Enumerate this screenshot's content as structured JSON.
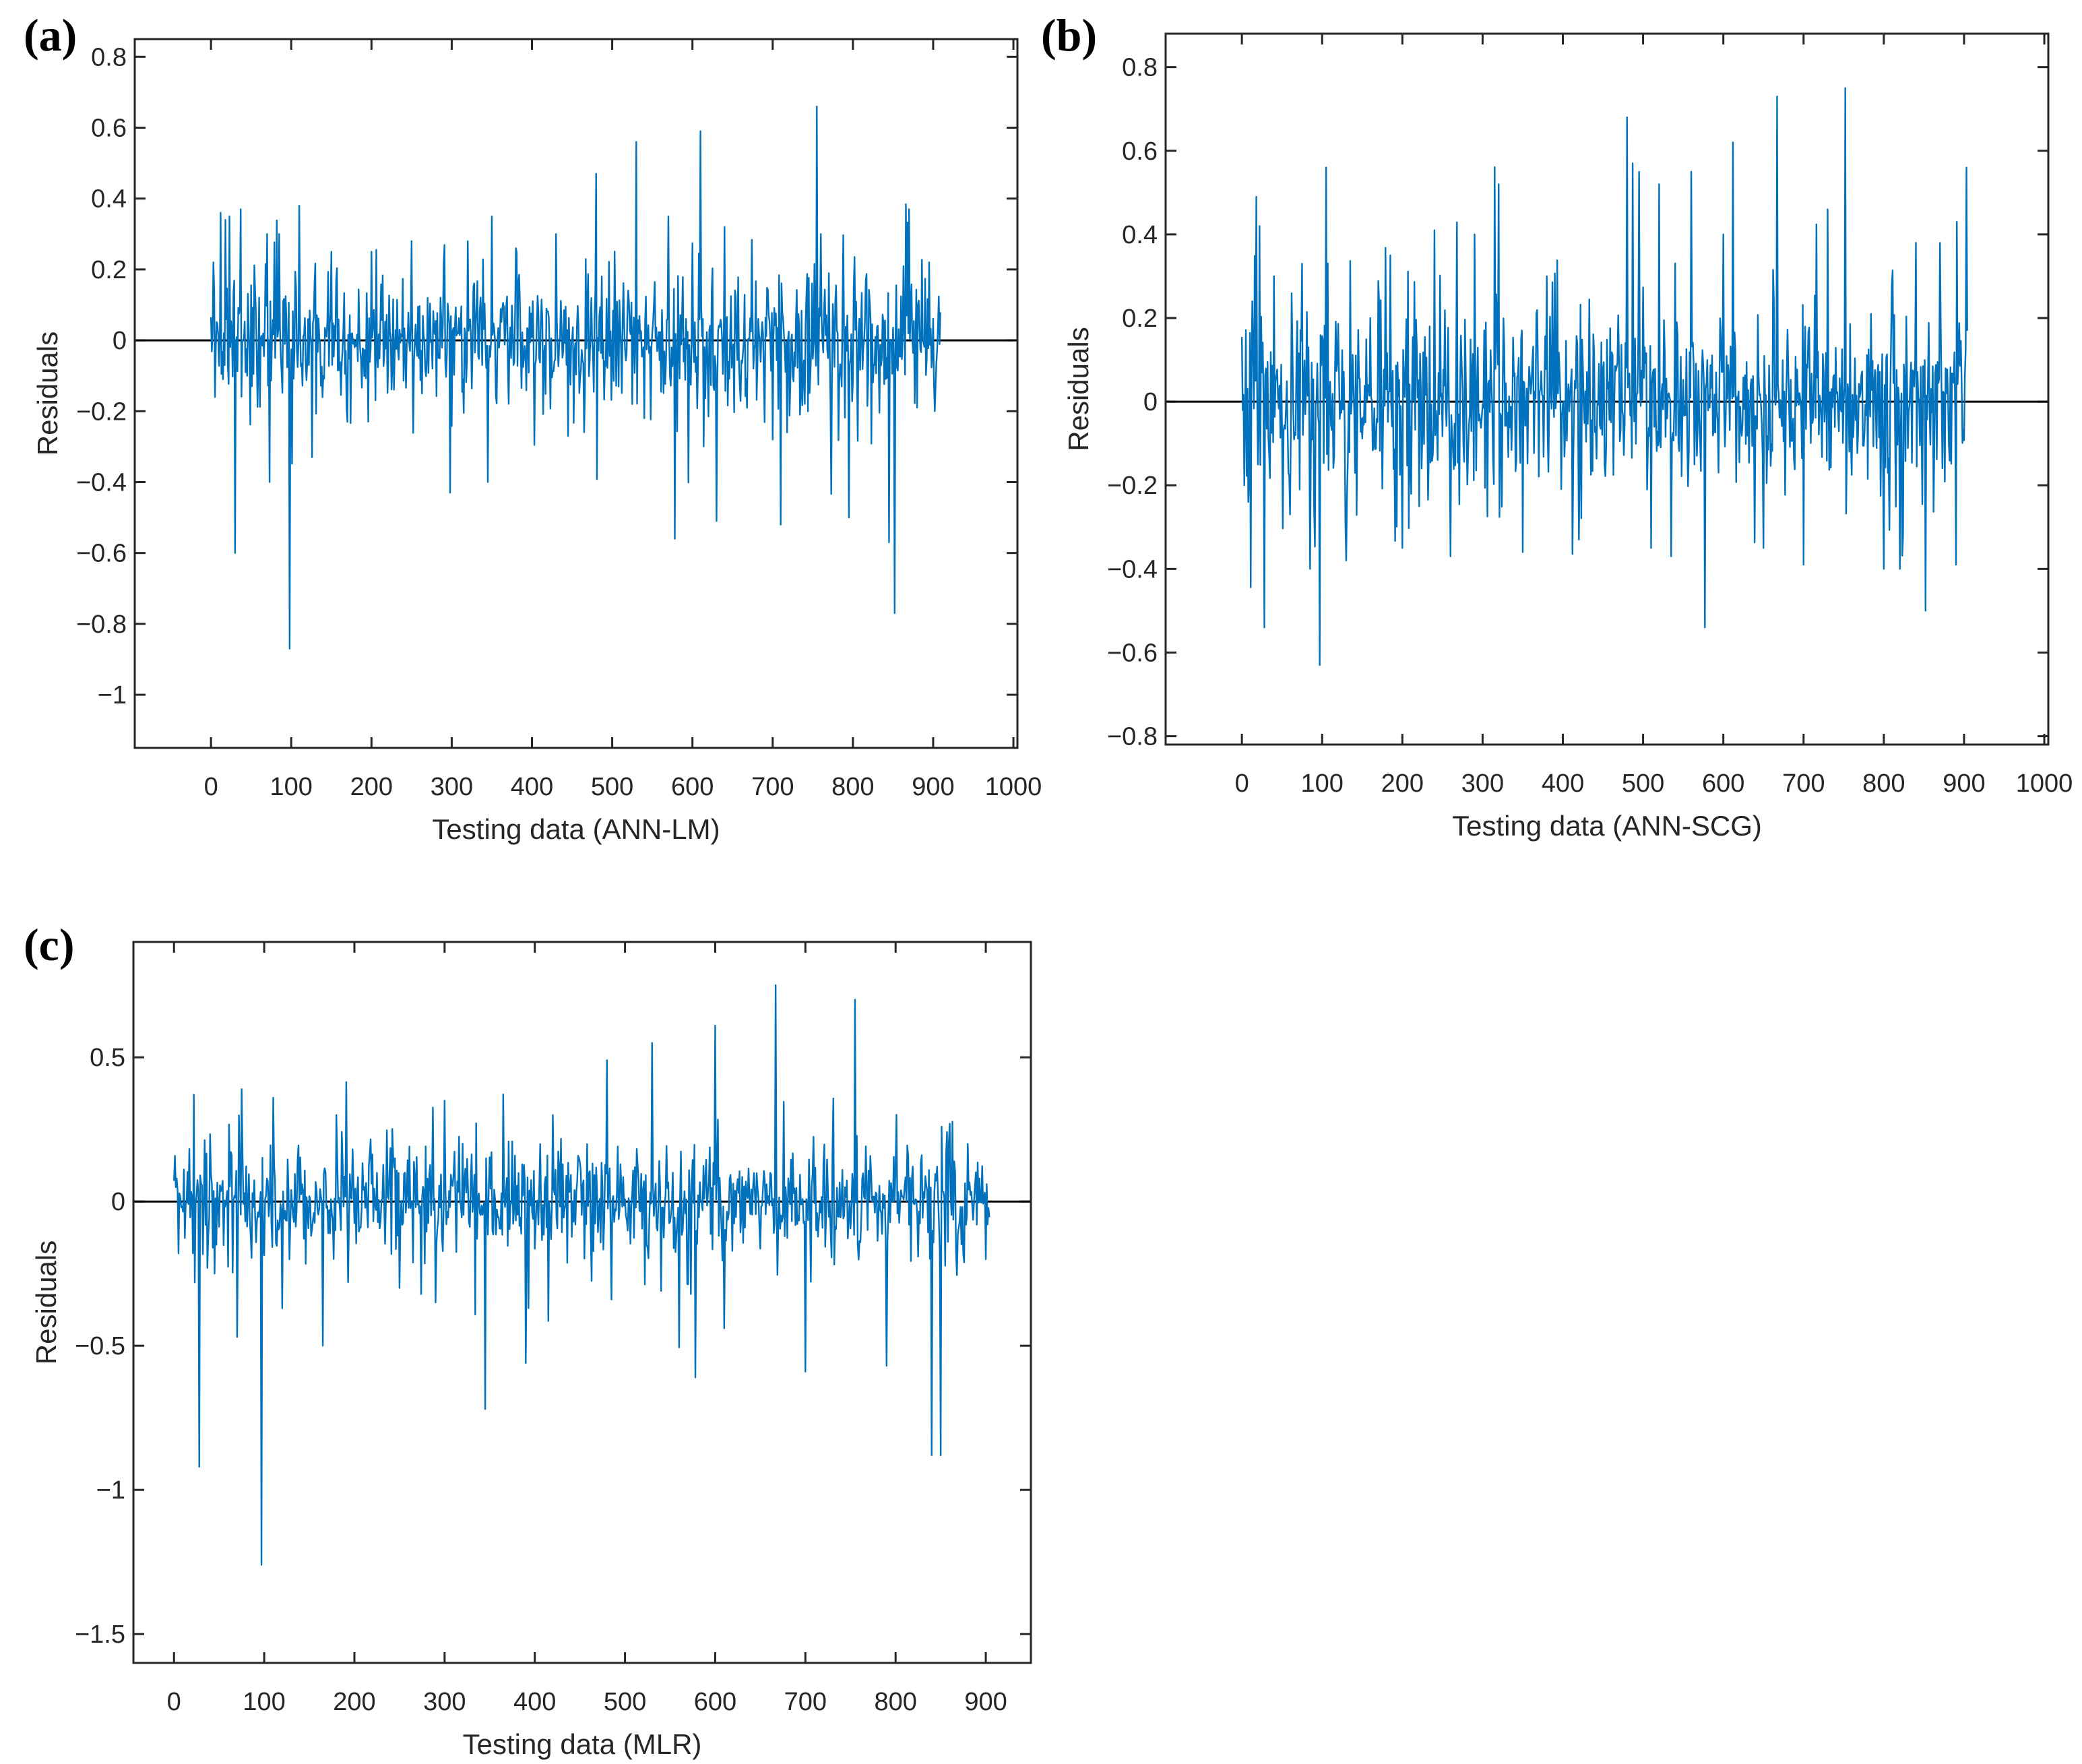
{
  "colors": {
    "series": "#0072BD",
    "axis": "#262626",
    "zero_line": "#000000"
  },
  "chart_data": [
    {
      "panel": "(a)",
      "type": "line",
      "xlabel": "Testing data (ANN-LM)",
      "ylabel": "Residuals",
      "xlim": [
        -95,
        1005
      ],
      "ylim": [
        -1.15,
        0.85
      ],
      "xticks": [
        0,
        100,
        200,
        300,
        400,
        500,
        600,
        700,
        800,
        900,
        1000
      ],
      "xtick_labels": [
        "0",
        "100",
        "200",
        "300",
        "400",
        "500",
        "600",
        "700",
        "800",
        "900",
        "1000"
      ],
      "yticks": [
        -1,
        -0.8,
        -0.6,
        -0.4,
        -0.2,
        0,
        0.2,
        0.4,
        0.6,
        0.8
      ],
      "ytick_labels": [
        "−1",
        "−0.8",
        "−0.6",
        "−0.4",
        "−0.2",
        "0",
        "0.2",
        "0.4",
        "0.6",
        "0.8"
      ],
      "reference_line": 0,
      "n_points": 910,
      "base_amplitude": 0.09,
      "noise_seed": 17,
      "spikes": [
        [
          3,
          0.22
        ],
        [
          5,
          -0.16
        ],
        [
          12,
          0.36
        ],
        [
          18,
          0.34
        ],
        [
          23,
          0.35
        ],
        [
          30,
          -0.6
        ],
        [
          37,
          0.37
        ],
        [
          45,
          -0.1
        ],
        [
          70,
          0.3
        ],
        [
          73,
          -0.4
        ],
        [
          85,
          0.3
        ],
        [
          98,
          -0.87
        ],
        [
          110,
          0.38
        ],
        [
          126,
          -0.33
        ],
        [
          150,
          0.25
        ],
        [
          170,
          -0.23
        ],
        [
          200,
          0.25
        ],
        [
          250,
          0.28
        ],
        [
          290,
          0.22
        ],
        [
          298,
          -0.43
        ],
        [
          320,
          0.28
        ],
        [
          345,
          -0.4
        ],
        [
          350,
          0.35
        ],
        [
          380,
          0.26
        ],
        [
          430,
          0.3
        ],
        [
          445,
          -0.27
        ],
        [
          480,
          0.47
        ],
        [
          525,
          -0.18
        ],
        [
          530,
          0.56
        ],
        [
          540,
          -0.22
        ],
        [
          570,
          0.35
        ],
        [
          578,
          -0.56
        ],
        [
          610,
          0.59
        ],
        [
          630,
          -0.51
        ],
        [
          640,
          0.32
        ],
        [
          700,
          -0.28
        ],
        [
          710,
          -0.52
        ],
        [
          755,
          0.66
        ],
        [
          760,
          0.3
        ],
        [
          795,
          -0.5
        ],
        [
          845,
          -0.57
        ],
        [
          852,
          -0.77
        ],
        [
          870,
          0.37
        ],
        [
          880,
          -0.19
        ],
        [
          895,
          0.22
        ],
        [
          902,
          -0.2
        ]
      ]
    },
    {
      "panel": "(b)",
      "type": "line",
      "xlabel": "Testing data (ANN-SCG)",
      "ylabel": "Residuals",
      "xlim": [
        -95,
        1005
      ],
      "ylim": [
        -0.82,
        0.88
      ],
      "xticks": [
        0,
        100,
        200,
        300,
        400,
        500,
        600,
        700,
        800,
        900,
        1000
      ],
      "xtick_labels": [
        "0",
        "100",
        "200",
        "300",
        "400",
        "500",
        "600",
        "700",
        "800",
        "900",
        "1000"
      ],
      "yticks": [
        -0.8,
        -0.6,
        -0.4,
        -0.2,
        0,
        0.2,
        0.4,
        0.6,
        0.8
      ],
      "ytick_labels": [
        "−0.8",
        "−0.6",
        "−0.4",
        "−0.2",
        "0",
        "0.2",
        "0.4",
        "0.6",
        "0.8"
      ],
      "reference_line": 0,
      "n_points": 905,
      "base_amplitude": 0.11,
      "noise_seed": 29,
      "spikes": [
        [
          3,
          -0.2
        ],
        [
          8,
          -0.24
        ],
        [
          13,
          0.24
        ],
        [
          18,
          0.49
        ],
        [
          22,
          0.42
        ],
        [
          28,
          -0.54
        ],
        [
          40,
          0.3
        ],
        [
          60,
          -0.27
        ],
        [
          75,
          0.33
        ],
        [
          85,
          -0.4
        ],
        [
          97,
          -0.63
        ],
        [
          105,
          0.56
        ],
        [
          130,
          -0.38
        ],
        [
          160,
          0.2
        ],
        [
          185,
          0.35
        ],
        [
          200,
          -0.35
        ],
        [
          240,
          0.41
        ],
        [
          260,
          -0.37
        ],
        [
          290,
          0.4
        ],
        [
          320,
          0.52
        ],
        [
          350,
          -0.36
        ],
        [
          380,
          0.3
        ],
        [
          420,
          -0.33
        ],
        [
          480,
          0.68
        ],
        [
          487,
          0.57
        ],
        [
          495,
          0.55
        ],
        [
          510,
          -0.35
        ],
        [
          520,
          0.52
        ],
        [
          535,
          -0.37
        ],
        [
          560,
          0.55
        ],
        [
          577,
          -0.54
        ],
        [
          600,
          0.4
        ],
        [
          612,
          0.62
        ],
        [
          650,
          -0.35
        ],
        [
          667,
          0.73
        ],
        [
          700,
          -0.39
        ],
        [
          730,
          0.46
        ],
        [
          752,
          0.75
        ],
        [
          800,
          -0.4
        ],
        [
          810,
          0.28
        ],
        [
          820,
          -0.4
        ],
        [
          840,
          0.38
        ],
        [
          852,
          -0.5
        ],
        [
          870,
          0.38
        ],
        [
          890,
          -0.39
        ],
        [
          903,
          0.56
        ]
      ]
    },
    {
      "panel": "(c)",
      "type": "line",
      "xlabel": "Testing data (MLR)",
      "ylabel": "Residuals",
      "xlim": [
        -45,
        950
      ],
      "ylim": [
        -1.6,
        0.9
      ],
      "xticks": [
        0,
        100,
        200,
        300,
        400,
        500,
        600,
        700,
        800,
        900
      ],
      "xtick_labels": [
        "0",
        "100",
        "200",
        "300",
        "400",
        "500",
        "600",
        "700",
        "800",
        "900"
      ],
      "yticks": [
        -1.5,
        -1,
        -0.5,
        0,
        0.5
      ],
      "ytick_labels": [
        "−1.5",
        "−1",
        "−0.5",
        "0",
        "0.5"
      ],
      "reference_line": 0,
      "n_points": 905,
      "base_amplitude": 0.1,
      "noise_seed": 43,
      "spikes": [
        [
          3,
          0.08
        ],
        [
          5,
          -0.18
        ],
        [
          22,
          0.37
        ],
        [
          28,
          -0.92
        ],
        [
          45,
          -0.25
        ],
        [
          70,
          -0.47
        ],
        [
          75,
          0.39
        ],
        [
          97,
          -1.26
        ],
        [
          110,
          0.36
        ],
        [
          120,
          -0.37
        ],
        [
          165,
          -0.5
        ],
        [
          180,
          0.3
        ],
        [
          250,
          -0.3
        ],
        [
          290,
          -0.35
        ],
        [
          300,
          0.35
        ],
        [
          345,
          -0.72
        ],
        [
          390,
          -0.56
        ],
        [
          420,
          0.3
        ],
        [
          480,
          0.49
        ],
        [
          485,
          -0.34
        ],
        [
          530,
          0.55
        ],
        [
          540,
          -0.31
        ],
        [
          578,
          -0.61
        ],
        [
          600,
          0.61
        ],
        [
          610,
          -0.44
        ],
        [
          667,
          0.75
        ],
        [
          700,
          -0.59
        ],
        [
          755,
          0.7
        ],
        [
          790,
          -0.57
        ],
        [
          840,
          -0.88
        ],
        [
          850,
          -0.88
        ],
        [
          860,
          0.27
        ],
        [
          880,
          0.2
        ],
        [
          900,
          -0.2
        ]
      ]
    }
  ]
}
